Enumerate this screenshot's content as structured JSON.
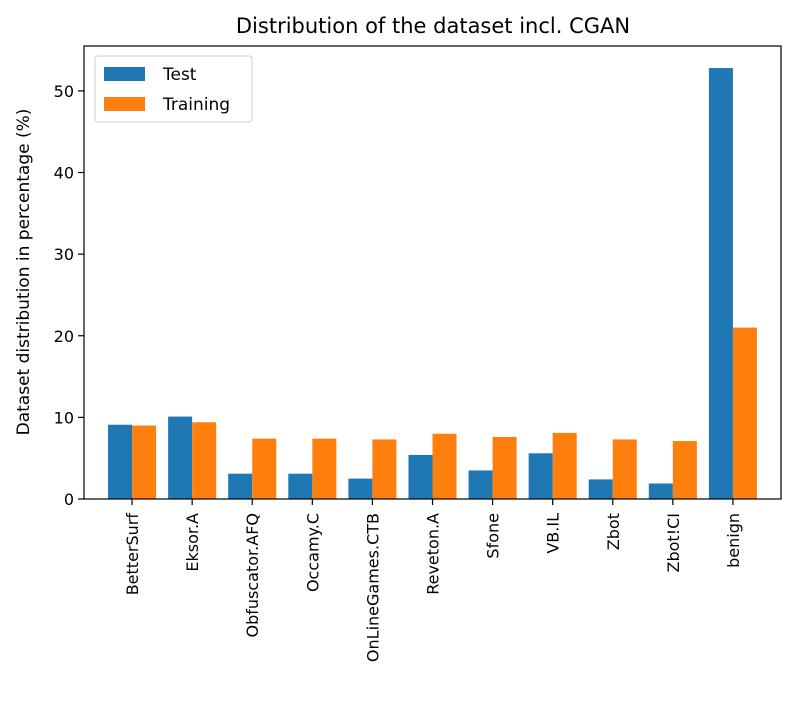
{
  "chart_data": {
    "type": "bar",
    "title": "Distribution of the dataset incl. CGAN",
    "xlabel": "",
    "ylabel": "Dataset distribution in percentage (%)",
    "categories": [
      "BetterSurf",
      "Eksor.A",
      "Obfuscator.AFQ",
      "Occamy.C",
      "OnLineGames.CTB",
      "Reveton.A",
      "Sfone",
      "VB.IL",
      "Zbot",
      "Zbot!CI",
      "benign"
    ],
    "series": [
      {
        "name": "Test",
        "color": "#1f77b4",
        "values": [
          9.1,
          10.1,
          3.1,
          3.1,
          2.5,
          5.4,
          3.5,
          5.6,
          2.4,
          1.9,
          52.8
        ]
      },
      {
        "name": "Training",
        "color": "#ff7f0e",
        "values": [
          9.0,
          9.4,
          7.4,
          7.4,
          7.3,
          8.0,
          7.6,
          8.1,
          7.3,
          7.1,
          21.0
        ]
      }
    ],
    "ylim": [
      0,
      55.5
    ],
    "yticks": [
      0,
      10,
      20,
      30,
      40,
      50
    ],
    "grid": false,
    "legend_position": "top-left"
  }
}
